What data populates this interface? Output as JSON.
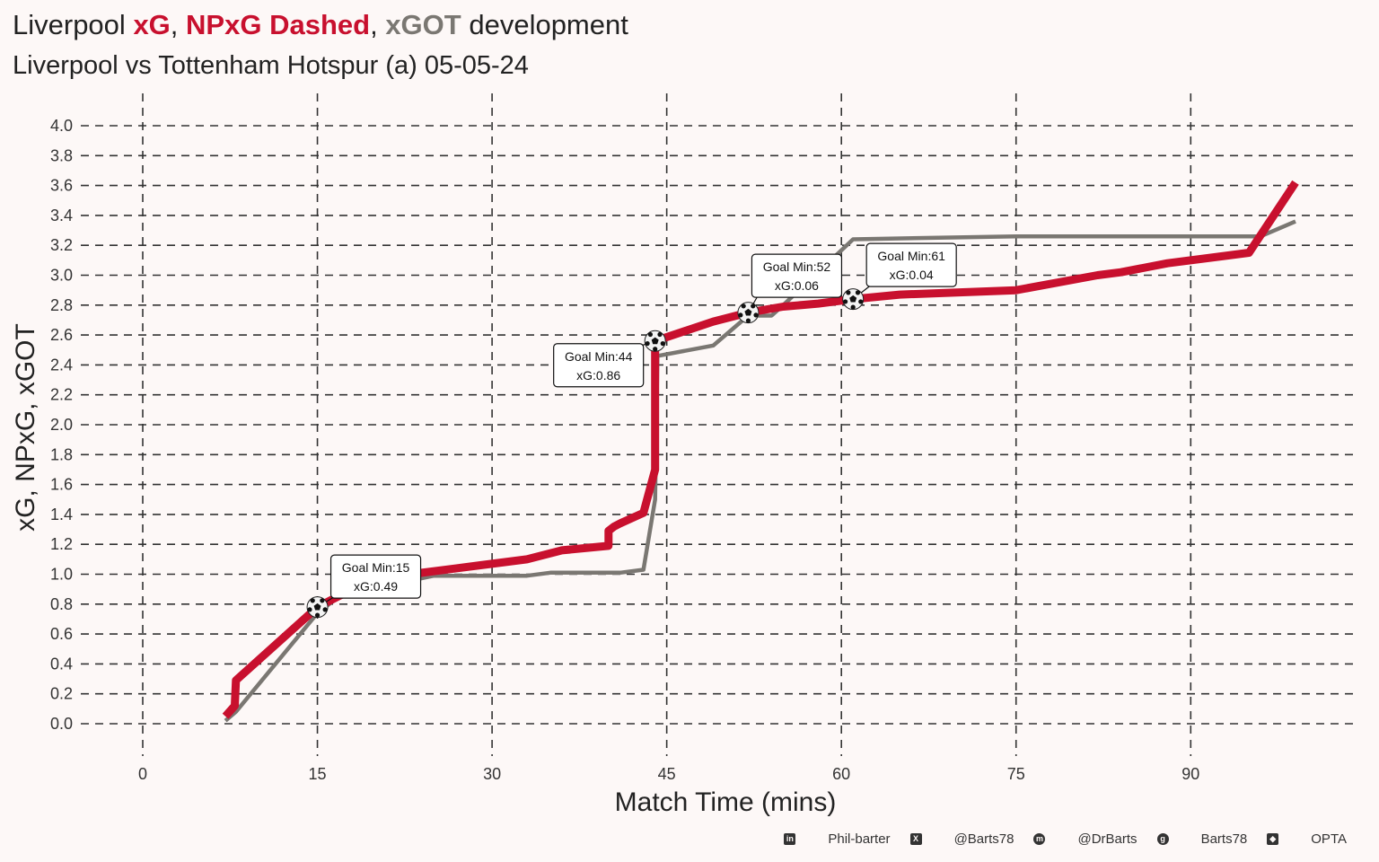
{
  "header": {
    "title_team": "Liverpool",
    "title_xg": "xG",
    "title_sep1": ",",
    "title_npxg": "NPxG Dashed",
    "title_sep2": ",",
    "title_xgot": "xGOT",
    "title_tail": "development",
    "subtitle": "Liverpool vs Tottenham Hotspur (a) 05-05-24"
  },
  "footer": {
    "linkedin_icon": "linkedin-icon",
    "linkedin": "Phil-barter",
    "x_icon": "x-icon",
    "x": "@Barts78",
    "mastodon_icon": "mastodon-icon",
    "mastodon": "@DrBarts",
    "github_icon": "github-icon",
    "github": "Barts78",
    "dropbox_icon": "dropbox-icon",
    "source": "OPTA"
  },
  "colors": {
    "xg": "#c8102e",
    "xgot": "#7a7772",
    "background": "#fdf8f7",
    "grid": "#333333"
  },
  "chart_data": {
    "type": "line",
    "xlabel": "Match Time (mins)",
    "ylabel": "xG, NPxG, xGOT",
    "xlim": [
      0,
      98
    ],
    "ylim": [
      0.0,
      4.0
    ],
    "xticks": [
      "0",
      "15",
      "30",
      "45",
      "60",
      "75",
      "90"
    ],
    "yticks": [
      "0.0",
      "0.2",
      "0.4",
      "0.6",
      "0.8",
      "1.0",
      "1.2",
      "1.4",
      "1.6",
      "1.8",
      "2.0",
      "2.2",
      "2.4",
      "2.6",
      "2.8",
      "3.0",
      "3.2",
      "3.4",
      "3.6",
      "3.8",
      "4.0"
    ],
    "grid": true,
    "series": [
      {
        "name": "xG",
        "color": "#c8102e",
        "x": [
          7.1,
          7.9,
          8.0,
          15.0,
          17.0,
          23.0,
          29.0,
          33.0,
          36.0,
          40.0,
          40.0,
          40.5,
          41.0,
          43.0,
          44.0,
          44.0,
          44.0,
          49.0,
          52.0,
          55.0,
          58.0,
          61.0,
          65.0,
          75.0,
          82.0,
          84.0,
          88.0,
          93.0,
          95.0,
          99.0
        ],
        "y": [
          0.05,
          0.12,
          0.29,
          0.78,
          0.86,
          1.0,
          1.06,
          1.1,
          1.16,
          1.19,
          1.29,
          1.32,
          1.34,
          1.41,
          1.7,
          2.56,
          2.56,
          2.69,
          2.75,
          2.79,
          2.81,
          2.84,
          2.87,
          2.9,
          3.0,
          3.02,
          3.08,
          3.13,
          3.15,
          3.62
        ]
      },
      {
        "name": "xGOT",
        "color": "#7a7772",
        "x": [
          7.1,
          8.0,
          15.0,
          17.0,
          25.0,
          33.0,
          35.0,
          37.0,
          41.0,
          43.0,
          44.0,
          44.2,
          49.0,
          52.0,
          53.0,
          54.0,
          55.0,
          61.0,
          75.0,
          88.0,
          96.0,
          99.0
        ],
        "y": [
          0.02,
          0.08,
          0.74,
          0.86,
          0.99,
          0.99,
          1.01,
          1.01,
          1.01,
          1.03,
          1.5,
          2.46,
          2.53,
          2.73,
          2.73,
          2.73,
          2.8,
          3.24,
          3.26,
          3.26,
          3.26,
          3.36
        ]
      }
    ],
    "goals": [
      {
        "minute": 15,
        "xg_value": 0.78,
        "label_line1": "Goal Min:15",
        "label_line2": "xG:0.49"
      },
      {
        "minute": 44,
        "xg_value": 2.56,
        "label_line1": "Goal Min:44",
        "label_line2": "xG:0.86"
      },
      {
        "minute": 52,
        "xg_value": 2.75,
        "label_line1": "Goal Min:52",
        "label_line2": "xG:0.06"
      },
      {
        "minute": 61,
        "xg_value": 2.84,
        "label_line1": "Goal Min:61",
        "label_line2": "xG:0.04"
      }
    ]
  }
}
